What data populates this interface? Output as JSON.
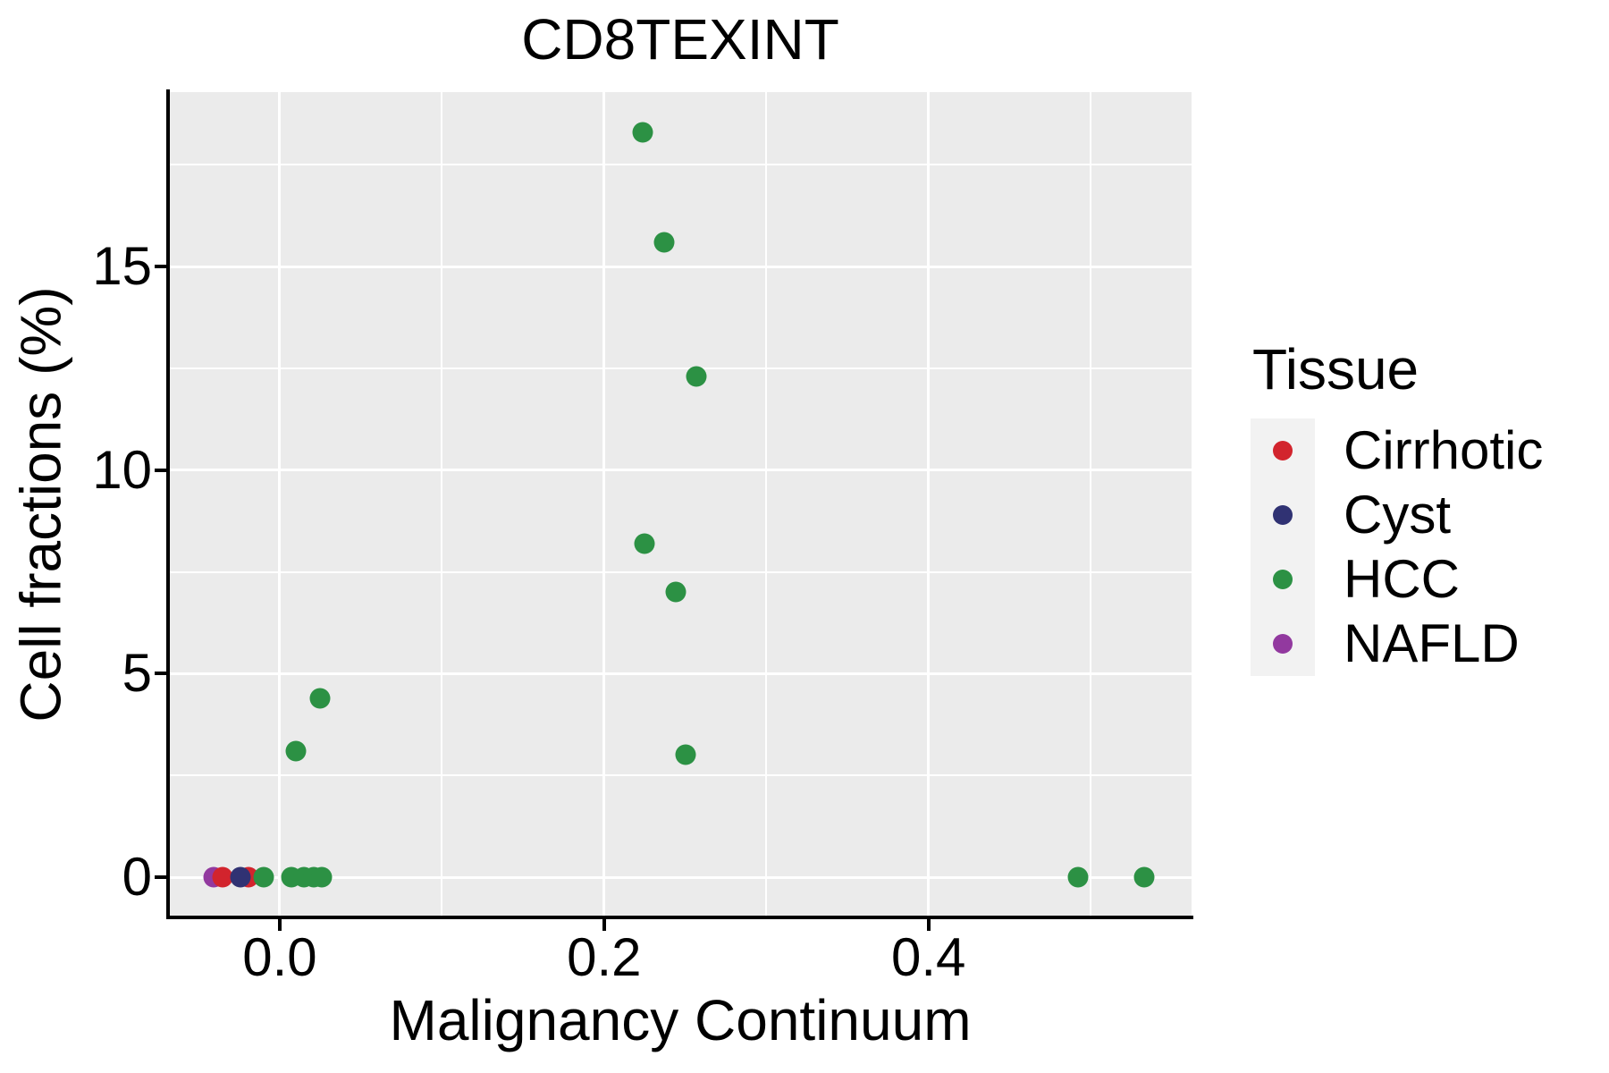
{
  "title": "CD8TEXINT",
  "x_axis_title": "Malignancy Continuum",
  "y_axis_title": "Cell fractions (%)",
  "legend": {
    "title": "Tissue",
    "items": [
      {
        "label": "Cirrhotic",
        "color": "#D2242D"
      },
      {
        "label": "Cyst",
        "color": "#303273"
      },
      {
        "label": "HCC",
        "color": "#2C9144"
      },
      {
        "label": "NAFLD",
        "color": "#92399F"
      }
    ]
  },
  "colors": {
    "panel_background": "#EBEBEB",
    "gridline": "#FFFFFF",
    "axis": "#000000",
    "legend_key_background": "#F2F2F2"
  },
  "chart_data": {
    "type": "scatter",
    "title": "CD8TEXINT",
    "xlabel": "Malignancy Continuum",
    "ylabel": "Cell fractions (%)",
    "xlim": [
      -0.0683,
      0.5622
    ],
    "ylim": [
      -0.944,
      19.285
    ],
    "grid": true,
    "legend_position": "right",
    "x_ticks": [
      {
        "value": 0.0,
        "label": "0.0"
      },
      {
        "value": 0.2,
        "label": "0.2"
      },
      {
        "value": 0.4,
        "label": "0.4"
      }
    ],
    "x_minor_ticks": [
      0.1,
      0.3,
      0.5
    ],
    "y_ticks": [
      {
        "value": 0,
        "label": "0"
      },
      {
        "value": 5,
        "label": "5"
      },
      {
        "value": 10,
        "label": "10"
      },
      {
        "value": 15,
        "label": "15"
      }
    ],
    "y_minor_ticks": [
      2.5,
      7.5,
      12.5,
      17.5
    ],
    "series": [
      {
        "name": "NAFLD",
        "color": "#92399F",
        "points": [
          [
            -0.041,
            0
          ]
        ]
      },
      {
        "name": "Cirrhotic",
        "color": "#D2242D",
        "points": [
          [
            -0.035,
            0
          ],
          [
            -0.019,
            0
          ]
        ]
      },
      {
        "name": "Cyst",
        "color": "#303273",
        "points": [
          [
            -0.024,
            0
          ]
        ]
      },
      {
        "name": "HCC",
        "color": "#2C9144",
        "points": [
          [
            -0.01,
            0
          ],
          [
            0.007,
            0
          ],
          [
            0.015,
            0
          ],
          [
            0.021,
            0
          ],
          [
            0.026,
            0
          ],
          [
            0.01,
            3.1
          ],
          [
            0.025,
            4.4
          ],
          [
            0.224,
            18.3
          ],
          [
            0.237,
            15.6
          ],
          [
            0.257,
            12.3
          ],
          [
            0.225,
            8.2
          ],
          [
            0.244,
            7.0
          ],
          [
            0.25,
            3.0
          ],
          [
            0.492,
            0
          ],
          [
            0.533,
            0
          ]
        ]
      }
    ]
  }
}
